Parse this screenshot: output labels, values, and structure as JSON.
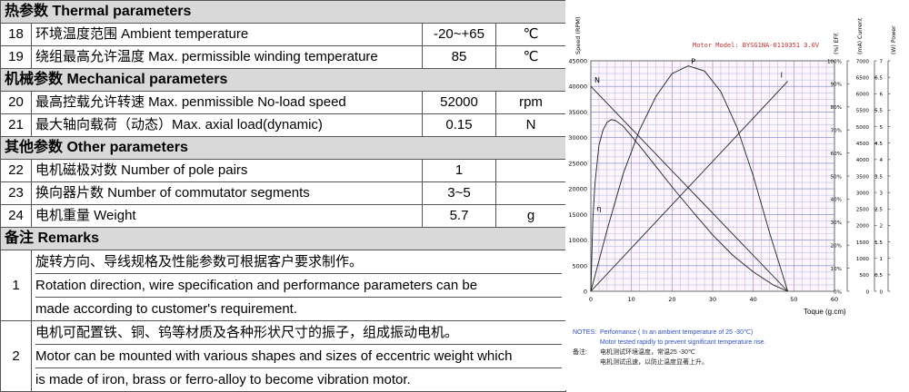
{
  "table": {
    "sections": [
      {
        "title": "热参数  Thermal parameters",
        "rows": [
          {
            "no": "18",
            "name": "环境温度范围  Ambient temperature",
            "value": "-20~+65",
            "unit": "℃"
          },
          {
            "no": "19",
            "name": "绕组最高允许温度  Max. permissible winding temperature",
            "value": "85",
            "unit": "℃"
          }
        ]
      },
      {
        "title": "机械参数 Mechanical parameters",
        "rows": [
          {
            "no": "20",
            "name": "最高控载允许转速 Max. penmissible No-load speed",
            "value": "52000",
            "unit": "rpm"
          },
          {
            "no": "21",
            "name": "最大轴向载荷（动态）Max. axial load(dynamic)",
            "value": "0.15",
            "unit": "N"
          }
        ]
      },
      {
        "title": "其他参数  Other parameters",
        "rows": [
          {
            "no": "22",
            "name": "电机磁极对数  Number of pole pairs",
            "value": "1",
            "unit": ""
          },
          {
            "no": "23",
            "name": "换向器片数  Number of commutator segments",
            "value": "3~5",
            "unit": ""
          },
          {
            "no": "24",
            "name": "电机重量 Weight",
            "value": "5.7",
            "unit": "g"
          }
        ]
      }
    ],
    "remarks_title": "备注  Remarks",
    "remarks": [
      {
        "no": "1",
        "lines": [
          "旋转方向、导线规格及性能参数可根据客户要求制作。",
          "Rotation direction, wire specification and performance parameters can be",
          "made according to customer's requirement."
        ]
      },
      {
        "no": "2",
        "lines": [
          "电机可配置铁、铜、钨等材质及各种形状尺寸的振子，组成振动电机。",
          "Motor can be mounted with various shapes and sizes of eccentric weight which",
          "is made of iron, brass or ferro-alloy to become vibration motor."
        ]
      }
    ]
  },
  "chart_data": {
    "type": "line",
    "title": "Motor Model: BYSG1NA-0110351  3.0V",
    "xlabel": "Toque   (g.cm)",
    "x_ticks": [
      0,
      10,
      20,
      30,
      40,
      50,
      60
    ],
    "xlim": [
      0,
      60
    ],
    "speed_axis": {
      "label": "Speed (RPM)",
      "ticks": [
        0,
        5000,
        10000,
        15000,
        20000,
        25000,
        30000,
        35000,
        40000,
        45000
      ],
      "lim": [
        0,
        45000
      ]
    },
    "eff_axis": {
      "label": "(%) EFF.",
      "ticks": [
        "0%",
        "10%",
        "20%",
        "30%",
        "40%",
        "50%",
        "60%",
        "70%",
        "80%",
        "90%",
        "100%"
      ]
    },
    "current_axis": {
      "label": "(mA) Current",
      "ticks": [
        0,
        500,
        1000,
        1500,
        2000,
        2500,
        3000,
        3500,
        4000,
        4500,
        5000,
        5500,
        6000,
        6500,
        7000
      ]
    },
    "power_axis": {
      "label": "(W) Power",
      "ticks": [
        0,
        0.5,
        1,
        1.5,
        2,
        2.5,
        3,
        3.5,
        4,
        4.5,
        5,
        5.5,
        6,
        6.5,
        7
      ]
    },
    "series": [
      {
        "name": "N",
        "x": [
          0,
          48.5
        ],
        "y_speed": [
          40000,
          0
        ]
      },
      {
        "name": "I",
        "x": [
          0,
          48.5
        ],
        "y_speed": [
          0,
          41000
        ]
      },
      {
        "name": "P",
        "x": [
          0,
          4,
          8,
          12,
          16,
          20,
          24,
          28,
          32,
          36,
          40,
          44,
          48.5
        ],
        "y_speed": [
          0,
          12000,
          23000,
          31500,
          38000,
          42500,
          44000,
          43000,
          39000,
          32000,
          22500,
          11500,
          0
        ]
      },
      {
        "name": "η",
        "x": [
          0,
          0.5,
          1,
          2,
          3,
          4,
          5,
          6,
          8,
          12,
          16,
          20,
          25,
          30,
          35,
          40,
          45,
          48.5
        ],
        "y_speed": [
          0,
          14000,
          21000,
          28500,
          31500,
          33000,
          33500,
          33400,
          32200,
          28400,
          24400,
          20400,
          15600,
          11000,
          7000,
          3800,
          1200,
          0
        ]
      }
    ],
    "notes": {
      "label": "NOTES:",
      "line1": "Performance ( In an ambient temperature of 25 -30℃)",
      "line2": "Motor tested rapidly to prevent significant temperature rise.",
      "cn_label": "备注:",
      "cn_line1": "电机测试环境温度，常温25 -30℃",
      "cn_line2": "电机测试迅速，以防止温度显著上升。"
    }
  }
}
